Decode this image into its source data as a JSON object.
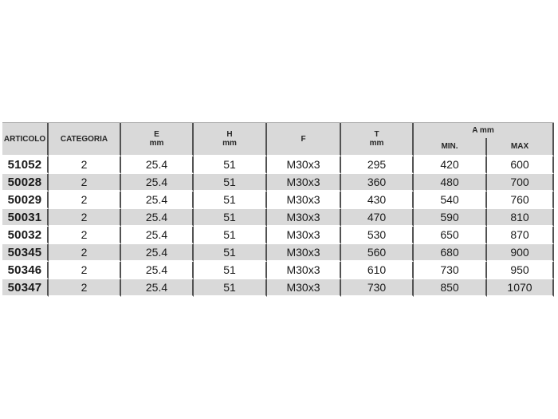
{
  "table": {
    "headers": {
      "articolo": "ARTICOLO",
      "categoria": "CATEGORIA",
      "e": "E",
      "e_unit": "mm",
      "h": "H",
      "h_unit": "mm",
      "f": "F",
      "t": "T",
      "t_unit": "mm",
      "a_group": "A mm",
      "a_min": "MIN.",
      "a_max": "MAX"
    },
    "rows": [
      [
        "51052",
        "2",
        "25.4",
        "51",
        "M30x3",
        "295",
        "420",
        "600"
      ],
      [
        "50028",
        "2",
        "25.4",
        "51",
        "M30x3",
        "360",
        "480",
        "700"
      ],
      [
        "50029",
        "2",
        "25.4",
        "51",
        "M30x3",
        "430",
        "540",
        "760"
      ],
      [
        "50031",
        "2",
        "25.4",
        "51",
        "M30x3",
        "470",
        "590",
        "810"
      ],
      [
        "50032",
        "2",
        "25.4",
        "51",
        "M30x3",
        "530",
        "650",
        "870"
      ],
      [
        "50345",
        "2",
        "25.4",
        "51",
        "M30x3",
        "560",
        "680",
        "900"
      ],
      [
        "50346",
        "2",
        "25.4",
        "51",
        "M30x3",
        "610",
        "730",
        "950"
      ],
      [
        "50347",
        "2",
        "25.4",
        "51",
        "M30x3",
        "730",
        "850",
        "1070"
      ]
    ]
  },
  "colors": {
    "stripe_gray": "#d9d9d9",
    "header_gray": "#d9d9d9",
    "divider_dark": "#525252",
    "row_separator": "#ffffff",
    "text": "#1a1a1a"
  }
}
